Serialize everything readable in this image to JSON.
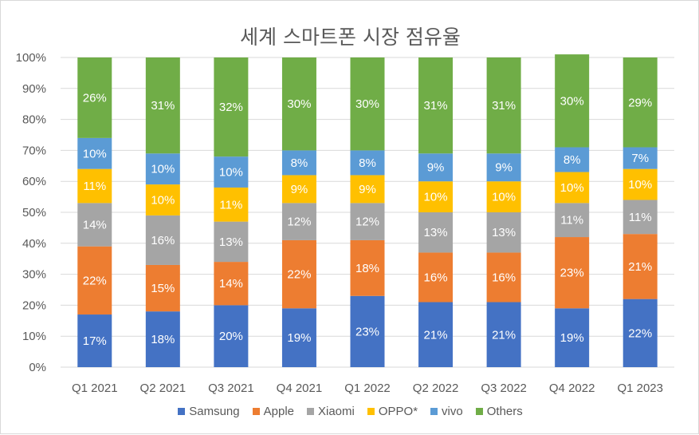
{
  "chart_data": {
    "type": "bar",
    "stacked": true,
    "title": "세계 스마트폰 시장 점유율",
    "categories": [
      "Q1 2021",
      "Q2 2021",
      "Q3 2021",
      "Q4 2021",
      "Q1 2022",
      "Q2 2022",
      "Q3 2022",
      "Q4 2022",
      "Q1 2023"
    ],
    "ylim": [
      0,
      100
    ],
    "yticks": [
      "0%",
      "10%",
      "20%",
      "30%",
      "40%",
      "50%",
      "60%",
      "70%",
      "80%",
      "90%",
      "100%"
    ],
    "legend_position": "bottom",
    "series": [
      {
        "name": "Samsung",
        "color": "#4472c4",
        "values": [
          17,
          18,
          20,
          19,
          23,
          21,
          21,
          19,
          22
        ],
        "labels": [
          "17%",
          "18%",
          "20%",
          "19%",
          "23%",
          "21%",
          "21%",
          "19%",
          "22%"
        ]
      },
      {
        "name": "Apple",
        "color": "#ed7d31",
        "values": [
          22,
          15,
          14,
          22,
          18,
          16,
          16,
          23,
          21
        ],
        "labels": [
          "22%",
          "15%",
          "14%",
          "22%",
          "18%",
          "16%",
          "16%",
          "23%",
          "21%"
        ]
      },
      {
        "name": "Xiaomi",
        "color": "#a5a5a5",
        "values": [
          14,
          16,
          13,
          12,
          12,
          13,
          13,
          11,
          11
        ],
        "labels": [
          "14%",
          "16%",
          "13%",
          "12%",
          "12%",
          "13%",
          "13%",
          "11%",
          "11%"
        ]
      },
      {
        "name": "OPPO*",
        "color": "#ffc000",
        "values": [
          11,
          10,
          11,
          9,
          9,
          10,
          10,
          10,
          10
        ],
        "labels": [
          "11%",
          "10%",
          "11%",
          "9%",
          "9%",
          "10%",
          "10%",
          "10%",
          "10%"
        ]
      },
      {
        "name": "vivo",
        "color": "#5b9bd5",
        "values": [
          10,
          10,
          10,
          8,
          8,
          9,
          9,
          8,
          7
        ],
        "labels": [
          "10%",
          "10%",
          "10%",
          "8%",
          "8%",
          "9%",
          "9%",
          "8%",
          "7%"
        ]
      },
      {
        "name": "Others",
        "color": "#70ad47",
        "values": [
          26,
          31,
          32,
          30,
          30,
          31,
          31,
          30,
          29
        ],
        "labels": [
          "26%",
          "31%",
          "32%",
          "30%",
          "30%",
          "31%",
          "31%",
          "30%",
          "29%"
        ]
      }
    ]
  }
}
